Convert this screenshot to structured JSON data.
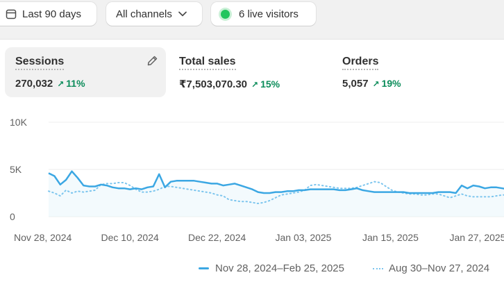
{
  "toolbar": {
    "date_range": "Last 90 days",
    "channels": "All channels",
    "live_visitors": "6 live visitors"
  },
  "metrics": [
    {
      "title": "Sessions",
      "value": "270,032",
      "change": "11%",
      "active": true
    },
    {
      "title": "Total sales",
      "value": "₹7,503,070.30",
      "change": "15%"
    },
    {
      "title": "Orders",
      "value": "5,057",
      "change": "19%"
    }
  ],
  "colors": {
    "current": "#3ba7e3",
    "previous": "#7cc5ee",
    "positive": "#0b8c5a",
    "live": "#22c55e"
  },
  "chart_data": {
    "type": "line",
    "y_ticks": [
      "10K",
      "5K",
      "0"
    ],
    "ylim": [
      0,
      10000
    ],
    "x_ticks": [
      "Nov 28, 2024",
      "Dec 10, 2024",
      "Dec 22, 2024",
      "Jan 03, 2025",
      "Jan 15, 2025",
      "Jan 27, 2025"
    ],
    "grid": true,
    "legend_position": "bottom-right",
    "series": [
      {
        "name": "Nov 28, 2024–Feb 25, 2025",
        "style": "solid",
        "values": [
          4600,
          4300,
          3400,
          3900,
          4800,
          4100,
          3300,
          3200,
          3200,
          3400,
          3300,
          3100,
          3000,
          3000,
          2900,
          3000,
          2900,
          3100,
          3200,
          4500,
          3100,
          3700,
          3800,
          3800,
          3800,
          3800,
          3700,
          3600,
          3500,
          3500,
          3300,
          3400,
          3500,
          3300,
          3100,
          2900,
          2600,
          2500,
          2500,
          2600,
          2600,
          2700,
          2700,
          2800,
          2800,
          2900,
          2900,
          2900,
          2900,
          2900,
          2800,
          2800,
          2900,
          3000,
          2800,
          2700,
          2600,
          2600,
          2600,
          2600,
          2600,
          2600,
          2500,
          2500,
          2500,
          2500,
          2500,
          2600,
          2600,
          2600,
          2500,
          3300,
          3000,
          3300,
          3200,
          3000,
          3100,
          3100,
          3000,
          2900
        ]
      },
      {
        "name": "Aug 30–Nov 27, 2024",
        "style": "dotted",
        "values": [
          2700,
          2500,
          2200,
          2800,
          2500,
          2700,
          2600,
          2700,
          2800,
          3400,
          3500,
          3500,
          3600,
          3600,
          3300,
          2900,
          2600,
          2600,
          2700,
          2900,
          3200,
          3200,
          3100,
          3000,
          2900,
          2800,
          2700,
          2600,
          2500,
          2300,
          2200,
          1800,
          1700,
          1600,
          1600,
          1500,
          1400,
          1500,
          1700,
          2000,
          2300,
          2400,
          2500,
          2600,
          2800,
          3300,
          3400,
          3300,
          3200,
          3100,
          3000,
          3000,
          3000,
          3100,
          3300,
          3500,
          3700,
          3600,
          3200,
          2800,
          2600,
          2500,
          2400,
          2400,
          2300,
          2300,
          2400,
          2400,
          2200,
          2000,
          2200,
          2400,
          2200,
          2100,
          2100,
          2100,
          2100,
          2200,
          2300,
          2300
        ]
      }
    ]
  }
}
